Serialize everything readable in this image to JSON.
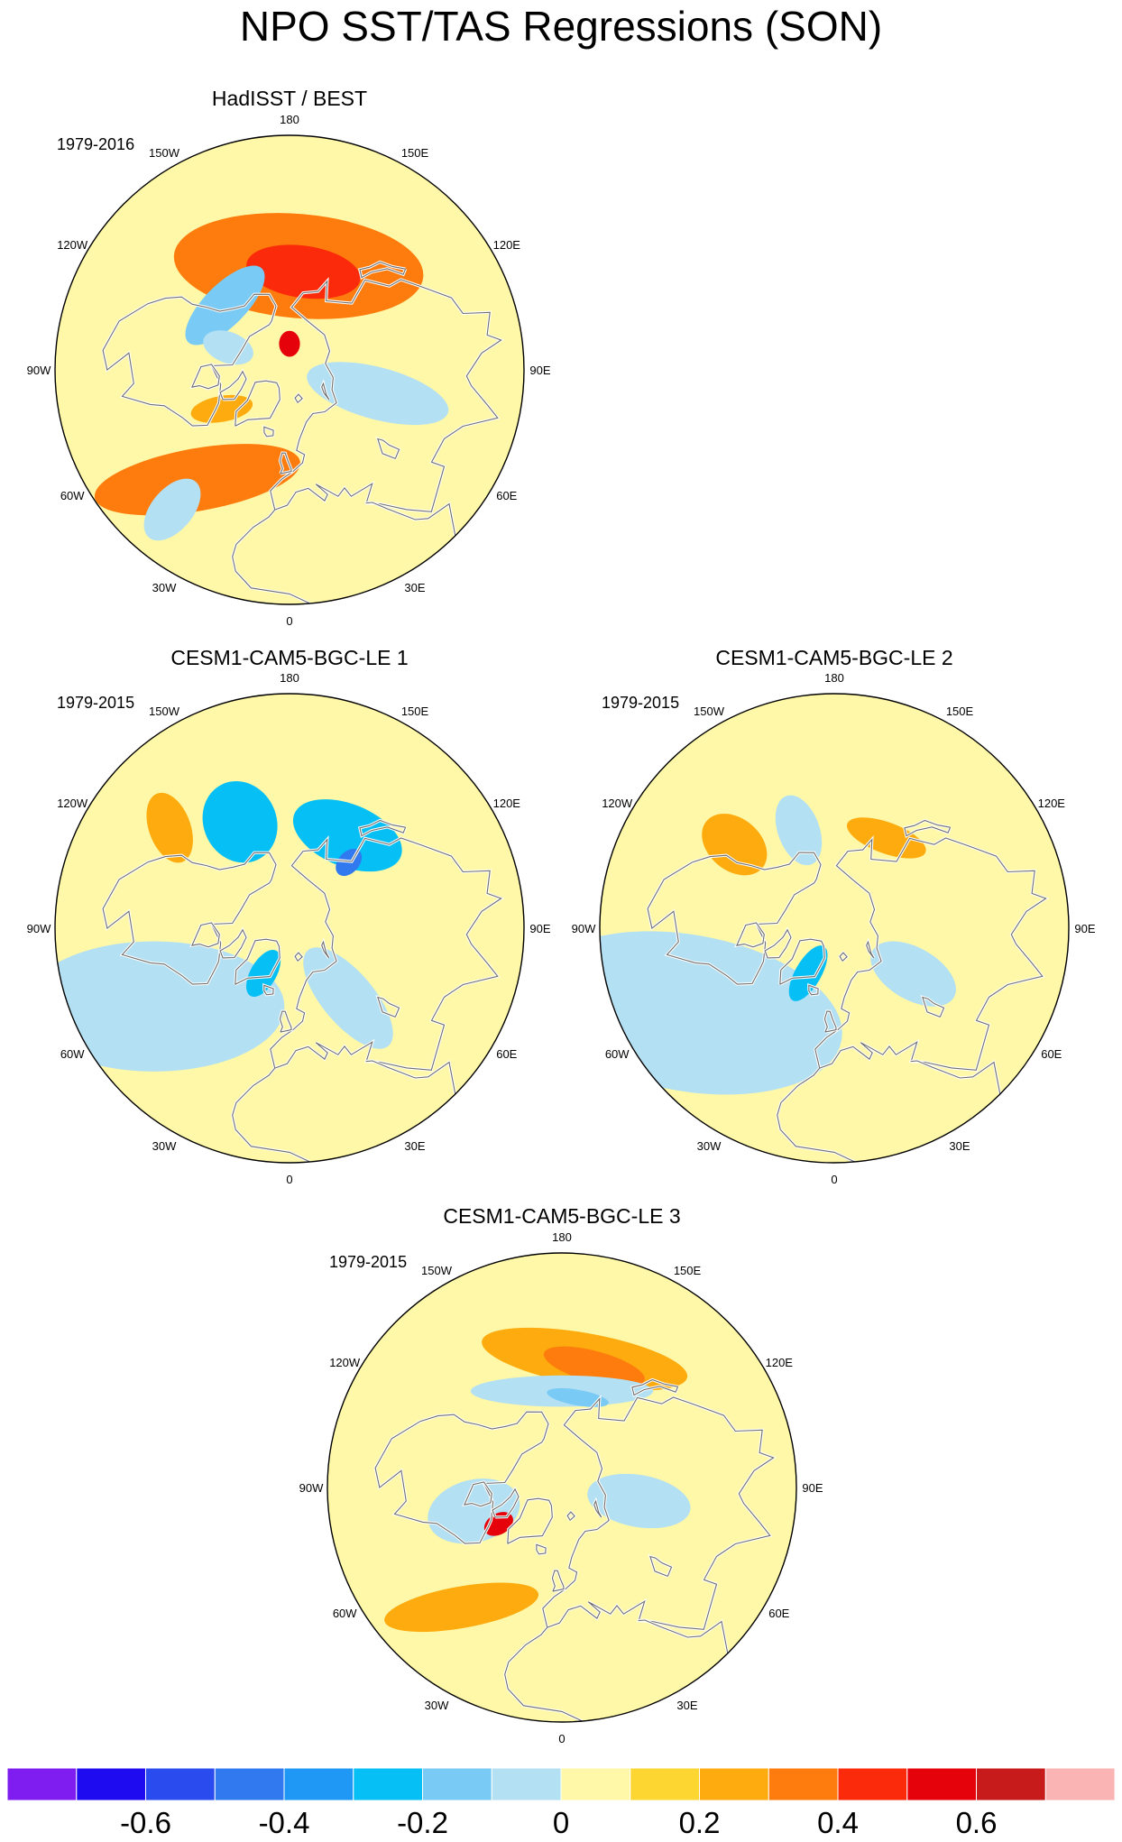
{
  "figure": {
    "title": "NPO SST/TAS Regressions (SON)"
  },
  "panels": [
    {
      "id": "hadisst",
      "title": "HadISST / BEST",
      "period": "1979-2016",
      "base_color": "#ffe28a",
      "anomalies": [
        {
          "lat": 50,
          "lon": 175,
          "rx": 20,
          "ry": 48,
          "value": 0.3,
          "rot": 90
        },
        {
          "lat": 52,
          "lon": 172,
          "rx": 10,
          "ry": 22,
          "value": 0.4,
          "rot": 90
        },
        {
          "lat": 55,
          "lon": 225,
          "rx": 8,
          "ry": 20,
          "value": -0.2,
          "rot": 90
        },
        {
          "lat": 65,
          "lon": 250,
          "rx": 6,
          "ry": 10,
          "value": -0.1,
          "rot": 0
        },
        {
          "lat": 80,
          "lon": 180,
          "rx": 4,
          "ry": 5,
          "value": 0.5,
          "rot": 0
        },
        {
          "lat": 35,
          "lon": 320,
          "rx": 12,
          "ry": 40,
          "value": 0.3,
          "rot": 40
        },
        {
          "lat": 20,
          "lon": 320,
          "rx": 8,
          "ry": 14,
          "value": -0.1,
          "rot": 0
        },
        {
          "lat": 55,
          "lon": 75,
          "rx": 10,
          "ry": 28,
          "value": -0.1,
          "rot": 0
        },
        {
          "lat": 60,
          "lon": 300,
          "rx": 5,
          "ry": 12,
          "value": 0.2,
          "rot": 20
        }
      ],
      "lon_labels": [
        "180",
        "150E",
        "120E",
        "90E",
        "60E",
        "30E",
        "0",
        "30W",
        "60W",
        "90W",
        "120W",
        "150W"
      ]
    },
    {
      "id": "le1",
      "title": "CESM1-CAM5-BGC-LE 1",
      "period": "1979-2015",
      "base_color": "#ffe28a",
      "anomalies": [
        {
          "lat": 45,
          "lon": 205,
          "rx": 14,
          "ry": 16,
          "value": -0.3,
          "rot": 0
        },
        {
          "lat": 48,
          "lon": 148,
          "rx": 12,
          "ry": 22,
          "value": -0.3,
          "rot": 80
        },
        {
          "lat": 56,
          "lon": 138,
          "rx": 4,
          "ry": 6,
          "value": -0.5,
          "rot": 0
        },
        {
          "lat": 30,
          "lon": 300,
          "rx": 25,
          "ry": 50,
          "value": -0.1,
          "rot": 30
        },
        {
          "lat": 55,
          "lon": 40,
          "rx": 10,
          "ry": 24,
          "value": -0.1,
          "rot": 0
        },
        {
          "lat": 70,
          "lon": 330,
          "rx": 5,
          "ry": 10,
          "value": -0.3,
          "rot": 0
        },
        {
          "lat": 30,
          "lon": 230,
          "rx": 8,
          "ry": 14,
          "value": 0.2,
          "rot": 30
        }
      ],
      "lon_labels": [
        "180",
        "150E",
        "120E",
        "90E",
        "60E",
        "30E",
        "0",
        "30W",
        "60W",
        "90W",
        "120W",
        "150W"
      ]
    },
    {
      "id": "le2",
      "title": "CESM1-CAM5-BGC-LE 2",
      "period": "1979-2015",
      "base_color": "#ffe28a",
      "anomalies": [
        {
          "lat": 25,
          "lon": 300,
          "rx": 30,
          "ry": 60,
          "value": -0.1,
          "rot": 40
        },
        {
          "lat": 55,
          "lon": 60,
          "rx": 10,
          "ry": 18,
          "value": -0.1,
          "rot": 0
        },
        {
          "lat": 50,
          "lon": 200,
          "rx": 8,
          "ry": 14,
          "value": -0.1,
          "rot": 0
        },
        {
          "lat": 70,
          "lon": 330,
          "rx": 5,
          "ry": 12,
          "value": -0.3,
          "rot": 0
        },
        {
          "lat": 40,
          "lon": 230,
          "rx": 10,
          "ry": 14,
          "value": 0.2,
          "rot": 0
        },
        {
          "lat": 50,
          "lon": 150,
          "rx": 6,
          "ry": 16,
          "value": 0.2,
          "rot": 80
        }
      ],
      "lon_labels": [
        "180",
        "150E",
        "120E",
        "90E",
        "60E",
        "30E",
        "0",
        "30W",
        "60W",
        "90W",
        "120W",
        "150W"
      ]
    },
    {
      "id": "le3",
      "title": "CESM1-CAM5-BGC-LE 3",
      "period": "1979-2015",
      "base_color": "#ffe28a",
      "anomalies": [
        {
          "lat": 40,
          "lon": 170,
          "rx": 10,
          "ry": 40,
          "value": 0.2,
          "rot": 90
        },
        {
          "lat": 42,
          "lon": 165,
          "rx": 6,
          "ry": 20,
          "value": 0.3,
          "rot": 90
        },
        {
          "lat": 53,
          "lon": 180,
          "rx": 6,
          "ry": 35,
          "value": -0.1,
          "rot": 90
        },
        {
          "lat": 55,
          "lon": 170,
          "rx": 3,
          "ry": 12,
          "value": -0.2,
          "rot": 90
        },
        {
          "lat": 55,
          "lon": 285,
          "rx": 12,
          "ry": 18,
          "value": -0.1,
          "rot": 0
        },
        {
          "lat": 62,
          "lon": 300,
          "rx": 4,
          "ry": 6,
          "value": 0.5,
          "rot": 0
        },
        {
          "lat": 30,
          "lon": 320,
          "rx": 8,
          "ry": 30,
          "value": 0.2,
          "rot": 40
        },
        {
          "lat": 60,
          "lon": 80,
          "rx": 10,
          "ry": 20,
          "value": -0.1,
          "rot": 0
        }
      ],
      "lon_labels": [
        "180",
        "150E",
        "120E",
        "90E",
        "60E",
        "30E",
        "0",
        "30W",
        "60W",
        "90W",
        "120W",
        "150W"
      ]
    }
  ],
  "colorbar": {
    "colors": [
      "#7f1cf0",
      "#1e0bef",
      "#2a4cef",
      "#3079ee",
      "#1e98f4",
      "#05bff5",
      "#79cbf5",
      "#b4e0f3",
      "#fff8a8",
      "#fdd631",
      "#fdab0e",
      "#fd7c0d",
      "#fb2a0a",
      "#e6020a",
      "#c71b1b",
      "#f9b4b3"
    ],
    "ticks": [
      {
        "value": -0.6,
        "label": "-0.6"
      },
      {
        "value": -0.4,
        "label": "-0.4"
      },
      {
        "value": -0.2,
        "label": "-0.2"
      },
      {
        "value": 0,
        "label": "0"
      },
      {
        "value": 0.2,
        "label": "0.2"
      },
      {
        "value": 0.4,
        "label": "0.4"
      },
      {
        "value": 0.6,
        "label": "0.6"
      }
    ],
    "min": -0.8,
    "max": 0.8
  }
}
